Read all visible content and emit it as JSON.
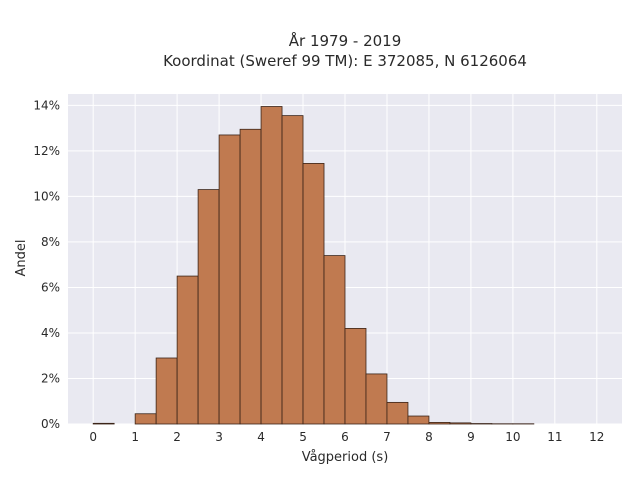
{
  "chart_data": {
    "type": "bar",
    "title_line1": "År 1979 - 2019",
    "title_line2": "Koordinat (Sweref 99 TM): E 372085, N 6126064",
    "xlabel": "Vågperiod (s)",
    "ylabel": "Andel",
    "xlim": [
      -0.6,
      12.6
    ],
    "ylim": [
      0,
      14.5
    ],
    "x_ticks": [
      0,
      1,
      2,
      3,
      4,
      5,
      6,
      7,
      8,
      9,
      10,
      11,
      12
    ],
    "y_ticks": [
      0,
      2,
      4,
      6,
      8,
      10,
      12,
      14
    ],
    "y_tick_suffix": "%",
    "bin_width": 0.5,
    "bins": [
      {
        "x0": 0.0,
        "value": 0.03
      },
      {
        "x0": 0.5,
        "value": 0.0
      },
      {
        "x0": 1.0,
        "value": 0.45
      },
      {
        "x0": 1.5,
        "value": 2.9
      },
      {
        "x0": 2.0,
        "value": 6.5
      },
      {
        "x0": 2.5,
        "value": 10.3
      },
      {
        "x0": 3.0,
        "value": 12.7
      },
      {
        "x0": 3.5,
        "value": 12.95
      },
      {
        "x0": 4.0,
        "value": 13.95
      },
      {
        "x0": 4.5,
        "value": 13.55
      },
      {
        "x0": 5.0,
        "value": 11.45
      },
      {
        "x0": 5.5,
        "value": 7.4
      },
      {
        "x0": 6.0,
        "value": 4.2
      },
      {
        "x0": 6.5,
        "value": 2.2
      },
      {
        "x0": 7.0,
        "value": 0.95
      },
      {
        "x0": 7.5,
        "value": 0.35
      },
      {
        "x0": 8.0,
        "value": 0.07
      },
      {
        "x0": 8.5,
        "value": 0.05
      },
      {
        "x0": 9.0,
        "value": 0.02
      },
      {
        "x0": 9.5,
        "value": 0.01
      },
      {
        "x0": 10.0,
        "value": 0.01
      }
    ],
    "grid": true,
    "colors": {
      "bar_fill": "#c07a50",
      "bar_edge": "#3b2418",
      "plot_bg": "#e9e9f1",
      "grid": "#ffffff"
    }
  }
}
